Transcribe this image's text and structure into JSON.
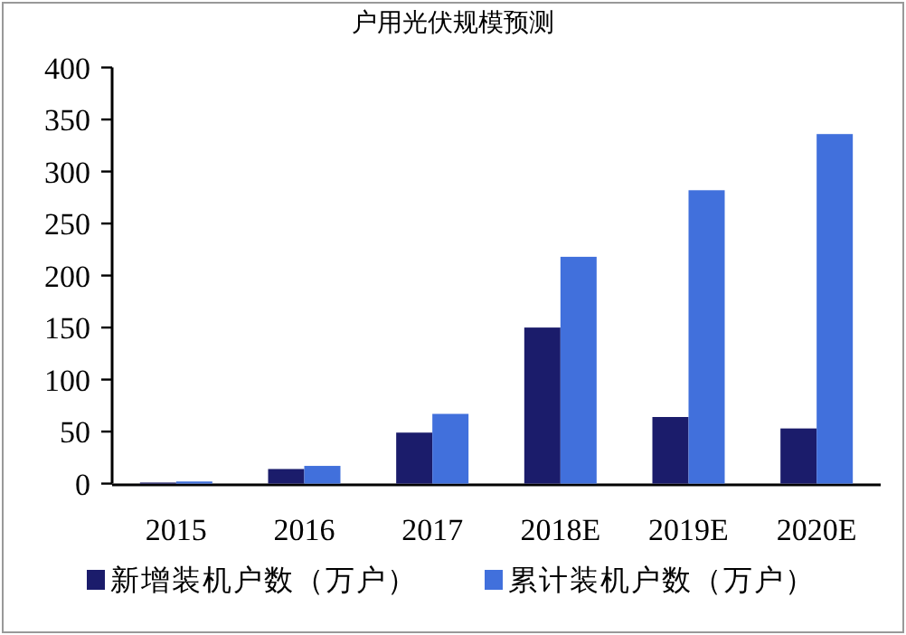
{
  "chart_data": {
    "type": "bar",
    "title": "户用光伏规模预测",
    "categories": [
      "2015",
      "2016",
      "2017",
      "2018E",
      "2019E",
      "2020E"
    ],
    "series": [
      {
        "name": "新增装机户数（万户）",
        "color": "#1b1c6b",
        "values": [
          1,
          14,
          49,
          150,
          64,
          53
        ]
      },
      {
        "name": "累计装机户数（万户）",
        "color": "#4170dc",
        "values": [
          2,
          17,
          67,
          218,
          282,
          336
        ]
      }
    ],
    "ylim": [
      0,
      400
    ],
    "yticks": [
      0,
      50,
      100,
      150,
      200,
      250,
      300,
      350,
      400
    ],
    "grid": false,
    "legend": "bottom"
  }
}
